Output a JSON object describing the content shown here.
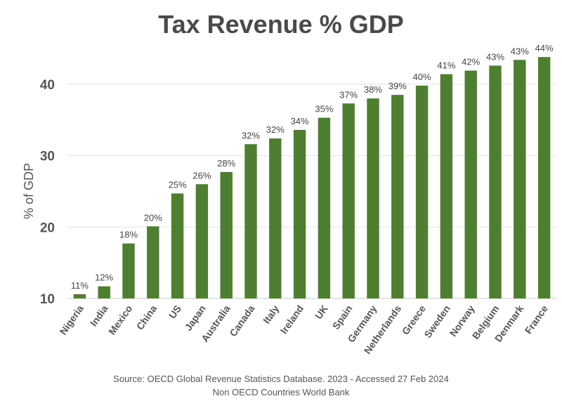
{
  "chart_data": {
    "type": "bar",
    "title": "Tax Revenue % GDP",
    "ylabel": "% of GDP",
    "xlabel": "",
    "ylim": [
      10,
      45
    ],
    "yticks": [
      10,
      20,
      30,
      40
    ],
    "grid": true,
    "bar_color": "#4e7f30",
    "categories": [
      "Nigeria",
      "India",
      "Mexico",
      "China",
      "US",
      "Japan",
      "Australia",
      "Canada",
      "Italy",
      "Ireland",
      "UK",
      "Spain",
      "Germany",
      "Netherlands",
      "Greece",
      "Sweden",
      "Norway",
      "Belgium",
      "Denmark",
      "France"
    ],
    "values": [
      10.6,
      11.7,
      17.7,
      20.1,
      24.7,
      26.0,
      27.7,
      31.6,
      32.4,
      33.6,
      35.3,
      37.3,
      38.0,
      38.5,
      39.8,
      41.4,
      41.9,
      42.6,
      43.4,
      43.8
    ],
    "labels": [
      "11%",
      "12%",
      "18%",
      "20%",
      "25%",
      "26%",
      "28%",
      "32%",
      "32%",
      "34%",
      "35%",
      "37%",
      "38%",
      "39%",
      "40%",
      "41%",
      "42%",
      "43%",
      "43%",
      "44%"
    ]
  },
  "source": {
    "line1": "Source: OECD Global Revenue Statistics Database. 2023 - Accessed 27 Feb 2024",
    "line2": "Non OECD Countries World Bank"
  }
}
